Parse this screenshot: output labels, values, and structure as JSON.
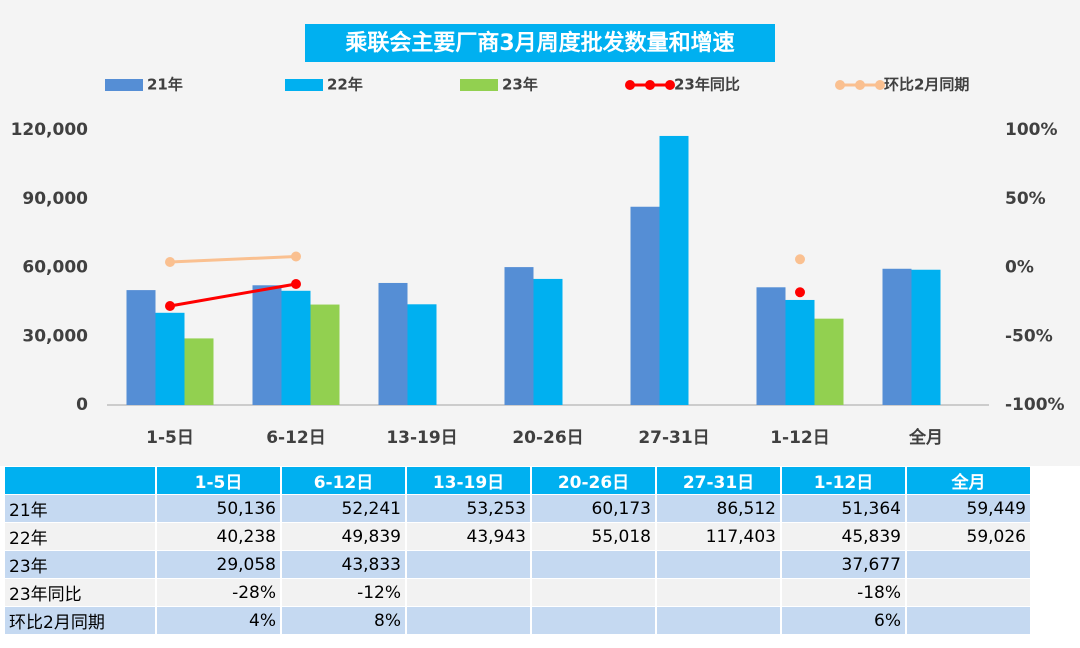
{
  "chart_data": {
    "type": "bar",
    "title": "乘联会主要厂商3月周度批发数量和增速",
    "categories": [
      "1-5日",
      "6-12日",
      "13-19日",
      "20-26日",
      "27-31日",
      "1-12日",
      "全月"
    ],
    "series": [
      {
        "name": "21年",
        "type": "bar",
        "color": "#558ed5",
        "values": [
          50136,
          52241,
          53253,
          60173,
          86512,
          51364,
          59449
        ],
        "value_labels": [
          "50,136",
          "52,241",
          "53,253",
          "60,173",
          "86,512",
          "51,364",
          "59,449"
        ]
      },
      {
        "name": "22年",
        "type": "bar",
        "color": "#00b0f0",
        "values": [
          40238,
          49839,
          43943,
          55018,
          117403,
          45839,
          59026
        ],
        "value_labels": [
          "40,238",
          "49,839",
          "43,943",
          "55,018",
          "117,403",
          "45,839",
          "59,026"
        ]
      },
      {
        "name": "23年",
        "type": "bar",
        "color": "#92d050",
        "values": [
          29058,
          43833,
          null,
          null,
          null,
          37677,
          null
        ],
        "value_labels": [
          "29,058",
          "43,833",
          null,
          null,
          null,
          "37,677",
          null
        ]
      },
      {
        "name": "23年同比",
        "type": "line",
        "axis": "y2",
        "color": "#ff0000",
        "values": [
          -28,
          -12,
          null,
          null,
          null,
          -18,
          null
        ],
        "value_labels": [
          "-28%",
          "-12%",
          null,
          null,
          null,
          "-18%",
          null
        ]
      },
      {
        "name": "环比2月同期",
        "type": "line",
        "axis": "y2",
        "color": "#fac090",
        "values": [
          4,
          8,
          null,
          null,
          null,
          6,
          null
        ],
        "value_labels": [
          "4%",
          "8%",
          null,
          null,
          null,
          "6%",
          null
        ]
      }
    ],
    "ylim": [
      0,
      120000
    ],
    "yticks": [
      0,
      {
        "value": 30000,
        "label": "30,000"
      },
      {
        "value": 60000,
        "label": "60,000"
      },
      {
        "value": 90000,
        "label": "90,000"
      },
      {
        "value": 120000,
        "label": "120,000"
      }
    ],
    "y2lim": [
      -100,
      100
    ],
    "y2ticks": [
      {
        "value": -100,
        "label": "-100%"
      },
      {
        "value": -50,
        "label": "-50%"
      },
      {
        "value": 0,
        "label": "0%"
      },
      {
        "value": 50,
        "label": "50%"
      },
      {
        "value": 100,
        "label": "100%"
      }
    ],
    "grid": false,
    "legend": "top",
    "data_table": true
  }
}
